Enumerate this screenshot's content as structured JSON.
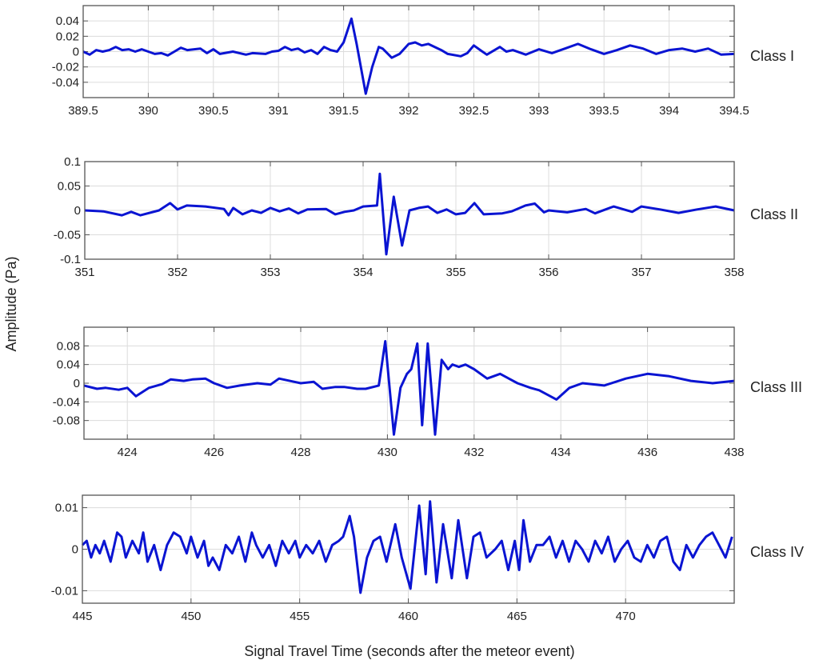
{
  "chart_data": {
    "type": "line",
    "ylabel": "Amplitude (Pa)",
    "xlabel": "Signal Travel Time (seconds after the meteor event)",
    "line_color": "#0a14d2",
    "grid": true,
    "panels": [
      {
        "label": "Class I",
        "xlim": [
          389.5,
          394.5
        ],
        "ylim": [
          -0.06,
          0.06
        ],
        "xticks": [
          389.5,
          390,
          390.5,
          391,
          391.5,
          392,
          392.5,
          393,
          393.5,
          394,
          394.5
        ],
        "xtick_labels": [
          "389.5",
          "390",
          "390.5",
          "391",
          "391.5",
          "392",
          "392.5",
          "393",
          "393.5",
          "394",
          "394.5"
        ],
        "yticks": [
          0.04,
          0.02,
          0,
          -0.02,
          -0.04
        ],
        "ytick_labels": [
          "0.04",
          "0.02",
          "0",
          "-0.02",
          "-0.04"
        ],
        "x": [
          389.5,
          389.55,
          389.6,
          389.65,
          389.7,
          389.75,
          389.8,
          389.85,
          389.9,
          389.95,
          390.0,
          390.05,
          390.1,
          390.15,
          390.2,
          390.25,
          390.3,
          390.4,
          390.45,
          390.5,
          390.55,
          390.65,
          390.75,
          390.8,
          390.9,
          390.95,
          391.0,
          391.05,
          391.1,
          391.15,
          391.2,
          391.25,
          391.3,
          391.35,
          391.4,
          391.45,
          391.5,
          391.56,
          391.6,
          391.67,
          391.72,
          391.77,
          391.8,
          391.87,
          391.93,
          392.0,
          392.05,
          392.1,
          392.15,
          392.25,
          392.3,
          392.4,
          392.45,
          392.5,
          392.55,
          392.6,
          392.7,
          392.75,
          392.8,
          392.9,
          393.0,
          393.1,
          393.2,
          393.3,
          393.4,
          393.5,
          393.6,
          393.7,
          393.8,
          393.9,
          394.0,
          394.1,
          394.2,
          394.3,
          394.4,
          394.5
        ],
        "y": [
          0,
          -0.004,
          0.002,
          0,
          0.002,
          0.006,
          0.002,
          0.003,
          0,
          0.003,
          0,
          -0.003,
          -0.002,
          -0.005,
          0,
          0.005,
          0.002,
          0.004,
          -0.002,
          0.003,
          -0.003,
          0,
          -0.004,
          -0.002,
          -0.003,
          0,
          0.001,
          0.006,
          0.002,
          0.004,
          -0.001,
          0.002,
          -0.003,
          0.006,
          0.002,
          0,
          0.012,
          0.043,
          0.01,
          -0.055,
          -0.02,
          0.006,
          0.004,
          -0.008,
          -0.003,
          0.01,
          0.012,
          0.008,
          0.01,
          0.002,
          -0.003,
          -0.006,
          -0.002,
          0.008,
          0.002,
          -0.004,
          0.006,
          0,
          0.002,
          -0.004,
          0.003,
          -0.002,
          0.004,
          0.01,
          0.003,
          -0.003,
          0.002,
          0.008,
          0.004,
          -0.003,
          0.002,
          0.004,
          0,
          0.004,
          -0.004,
          -0.003
        ]
      },
      {
        "label": "Class II",
        "xlim": [
          351,
          358
        ],
        "ylim": [
          -0.1,
          0.1
        ],
        "xticks": [
          351,
          352,
          353,
          354,
          355,
          356,
          357,
          358
        ],
        "xtick_labels": [
          "351",
          "352",
          "353",
          "354",
          "355",
          "356",
          "357",
          "358"
        ],
        "yticks": [
          0.1,
          0.05,
          0,
          -0.05,
          -0.1
        ],
        "ytick_labels": [
          "0.1",
          "0.05",
          "0",
          "-0.05",
          "-0.1"
        ],
        "x": [
          351,
          351.2,
          351.4,
          351.5,
          351.6,
          351.8,
          351.92,
          352.0,
          352.1,
          352.3,
          352.5,
          352.55,
          352.6,
          352.7,
          352.8,
          352.9,
          353.0,
          353.1,
          353.2,
          353.3,
          353.4,
          353.6,
          353.7,
          353.8,
          353.9,
          354.0,
          354.15,
          354.18,
          354.25,
          354.33,
          354.42,
          354.5,
          354.6,
          354.7,
          354.8,
          354.9,
          355.0,
          355.1,
          355.2,
          355.3,
          355.5,
          355.6,
          355.75,
          355.85,
          355.95,
          356.0,
          356.2,
          356.4,
          356.5,
          356.7,
          356.9,
          357.0,
          357.2,
          357.4,
          357.6,
          357.8,
          358
        ],
        "y": [
          0,
          -0.002,
          -0.01,
          -0.003,
          -0.01,
          0,
          0.015,
          0.002,
          0.01,
          0.008,
          0.003,
          -0.01,
          0.005,
          -0.008,
          0,
          -0.005,
          0.005,
          -0.002,
          0.004,
          -0.006,
          0.002,
          0.003,
          -0.008,
          -0.003,
          0,
          0.008,
          0.01,
          0.075,
          -0.09,
          0.028,
          -0.072,
          0,
          0.005,
          0.008,
          -0.005,
          0.002,
          -0.008,
          -0.005,
          0.015,
          -0.008,
          -0.006,
          -0.002,
          0.01,
          0.014,
          -0.004,
          0,
          -0.004,
          0.003,
          -0.006,
          0.008,
          -0.003,
          0.008,
          0.002,
          -0.005,
          0.002,
          0.008,
          0
        ]
      },
      {
        "label": "Class III",
        "xlim": [
          423,
          438
        ],
        "ylim": [
          -0.12,
          0.12
        ],
        "xticks": [
          424,
          426,
          428,
          430,
          432,
          434,
          436,
          438
        ],
        "xtick_labels": [
          "424",
          "426",
          "428",
          "430",
          "432",
          "434",
          "436",
          "438"
        ],
        "yticks": [
          0.08,
          0.04,
          0,
          -0.04,
          -0.08
        ],
        "ytick_labels": [
          "0.08",
          "0.04",
          "0",
          "-0.04",
          "-0.08"
        ],
        "x": [
          423,
          423.3,
          423.5,
          423.8,
          424,
          424.2,
          424.5,
          424.8,
          425,
          425.3,
          425.5,
          425.8,
          426,
          426.3,
          426.6,
          427,
          427.3,
          427.5,
          427.8,
          428,
          428.3,
          428.5,
          428.8,
          429,
          429.3,
          429.5,
          429.8,
          429.95,
          430.05,
          430.15,
          430.3,
          430.45,
          430.55,
          430.69,
          430.8,
          430.93,
          431.1,
          431.25,
          431.4,
          431.5,
          431.65,
          431.8,
          432,
          432.3,
          432.6,
          433,
          433.3,
          433.5,
          433.9,
          434.2,
          434.5,
          435,
          435.5,
          436,
          436.5,
          437,
          437.5,
          438
        ],
        "y": [
          -0.005,
          -0.012,
          -0.01,
          -0.014,
          -0.01,
          -0.028,
          -0.01,
          -0.002,
          0.008,
          0.005,
          0.008,
          0.01,
          0,
          -0.01,
          -0.005,
          0,
          -0.003,
          0.01,
          0.004,
          0,
          0.003,
          -0.012,
          -0.008,
          -0.008,
          -0.012,
          -0.012,
          -0.005,
          0.09,
          -0.01,
          -0.11,
          -0.01,
          0.02,
          0.03,
          0.085,
          -0.09,
          0.085,
          -0.11,
          0.05,
          0.03,
          0.04,
          0.035,
          0.04,
          0.03,
          0.01,
          0.02,
          0,
          -0.01,
          -0.015,
          -0.035,
          -0.01,
          0,
          -0.005,
          0.01,
          0.02,
          0.015,
          0.005,
          0,
          0.005
        ]
      },
      {
        "label": "Class IV",
        "xlim": [
          445,
          475
        ],
        "ylim": [
          -0.013,
          0.013
        ],
        "xticks": [
          445,
          450,
          455,
          460,
          465,
          470
        ],
        "xtick_labels": [
          "445",
          "450",
          "455",
          "460",
          "465",
          "470"
        ],
        "yticks": [
          0.01,
          0,
          -0.01
        ],
        "ytick_labels": [
          "0.01",
          "0",
          "-0.01"
        ],
        "x": [
          445,
          445.2,
          445.4,
          445.6,
          445.8,
          446.0,
          446.3,
          446.6,
          446.8,
          447.0,
          447.3,
          447.6,
          447.8,
          448.0,
          448.3,
          448.6,
          448.9,
          449.2,
          449.5,
          449.8,
          450.0,
          450.3,
          450.6,
          450.8,
          451.0,
          451.3,
          451.6,
          451.9,
          452.2,
          452.5,
          452.8,
          453.0,
          453.3,
          453.6,
          453.9,
          454.2,
          454.5,
          454.8,
          455.0,
          455.3,
          455.6,
          455.9,
          456.2,
          456.5,
          456.8,
          457.0,
          457.3,
          457.5,
          457.8,
          458.1,
          458.4,
          458.7,
          459.0,
          459.4,
          459.7,
          460.1,
          460.5,
          460.8,
          461.0,
          461.3,
          461.6,
          462.0,
          462.3,
          462.7,
          463.0,
          463.3,
          463.6,
          464.0,
          464.3,
          464.6,
          464.9,
          465.1,
          465.3,
          465.6,
          465.9,
          466.2,
          466.5,
          466.8,
          467.1,
          467.4,
          467.7,
          468.0,
          468.3,
          468.6,
          468.9,
          469.2,
          469.5,
          469.8,
          470.1,
          470.4,
          470.7,
          471.0,
          471.3,
          471.6,
          471.9,
          472.2,
          472.5,
          472.8,
          473.1,
          473.4,
          473.7,
          474.0,
          474.3,
          474.6,
          474.9
        ],
        "y": [
          0.001,
          0.002,
          -0.002,
          0.001,
          -0.001,
          0.002,
          -0.003,
          0.004,
          0.003,
          -0.002,
          0.002,
          -0.001,
          0.004,
          -0.003,
          0.001,
          -0.005,
          0.001,
          0.004,
          0.003,
          -0.001,
          0.003,
          -0.002,
          0.002,
          -0.004,
          -0.002,
          -0.005,
          0.001,
          -0.001,
          0.003,
          -0.003,
          0.004,
          0.001,
          -0.002,
          0.001,
          -0.004,
          0.002,
          -0.001,
          0.002,
          -0.002,
          0.001,
          -0.001,
          0.002,
          -0.003,
          0.001,
          0.002,
          0.003,
          0.008,
          0.003,
          -0.0105,
          -0.002,
          0.002,
          0.003,
          -0.003,
          0.006,
          -0.002,
          -0.0095,
          0.0105,
          -0.006,
          0.0115,
          -0.008,
          0.006,
          -0.007,
          0.007,
          -0.007,
          0.003,
          0.004,
          -0.002,
          0,
          0.002,
          -0.005,
          0.002,
          -0.005,
          0.007,
          -0.003,
          0.001,
          0.001,
          0.003,
          -0.002,
          0.002,
          -0.003,
          0.002,
          0,
          -0.003,
          0.002,
          -0.001,
          0.003,
          -0.003,
          0,
          0.002,
          -0.002,
          -0.003,
          0.001,
          -0.002,
          0.002,
          0.003,
          -0.003,
          -0.005,
          0.001,
          -0.002,
          0.001,
          0.003,
          0.004,
          0.001,
          -0.002,
          0.003
        ]
      }
    ]
  }
}
